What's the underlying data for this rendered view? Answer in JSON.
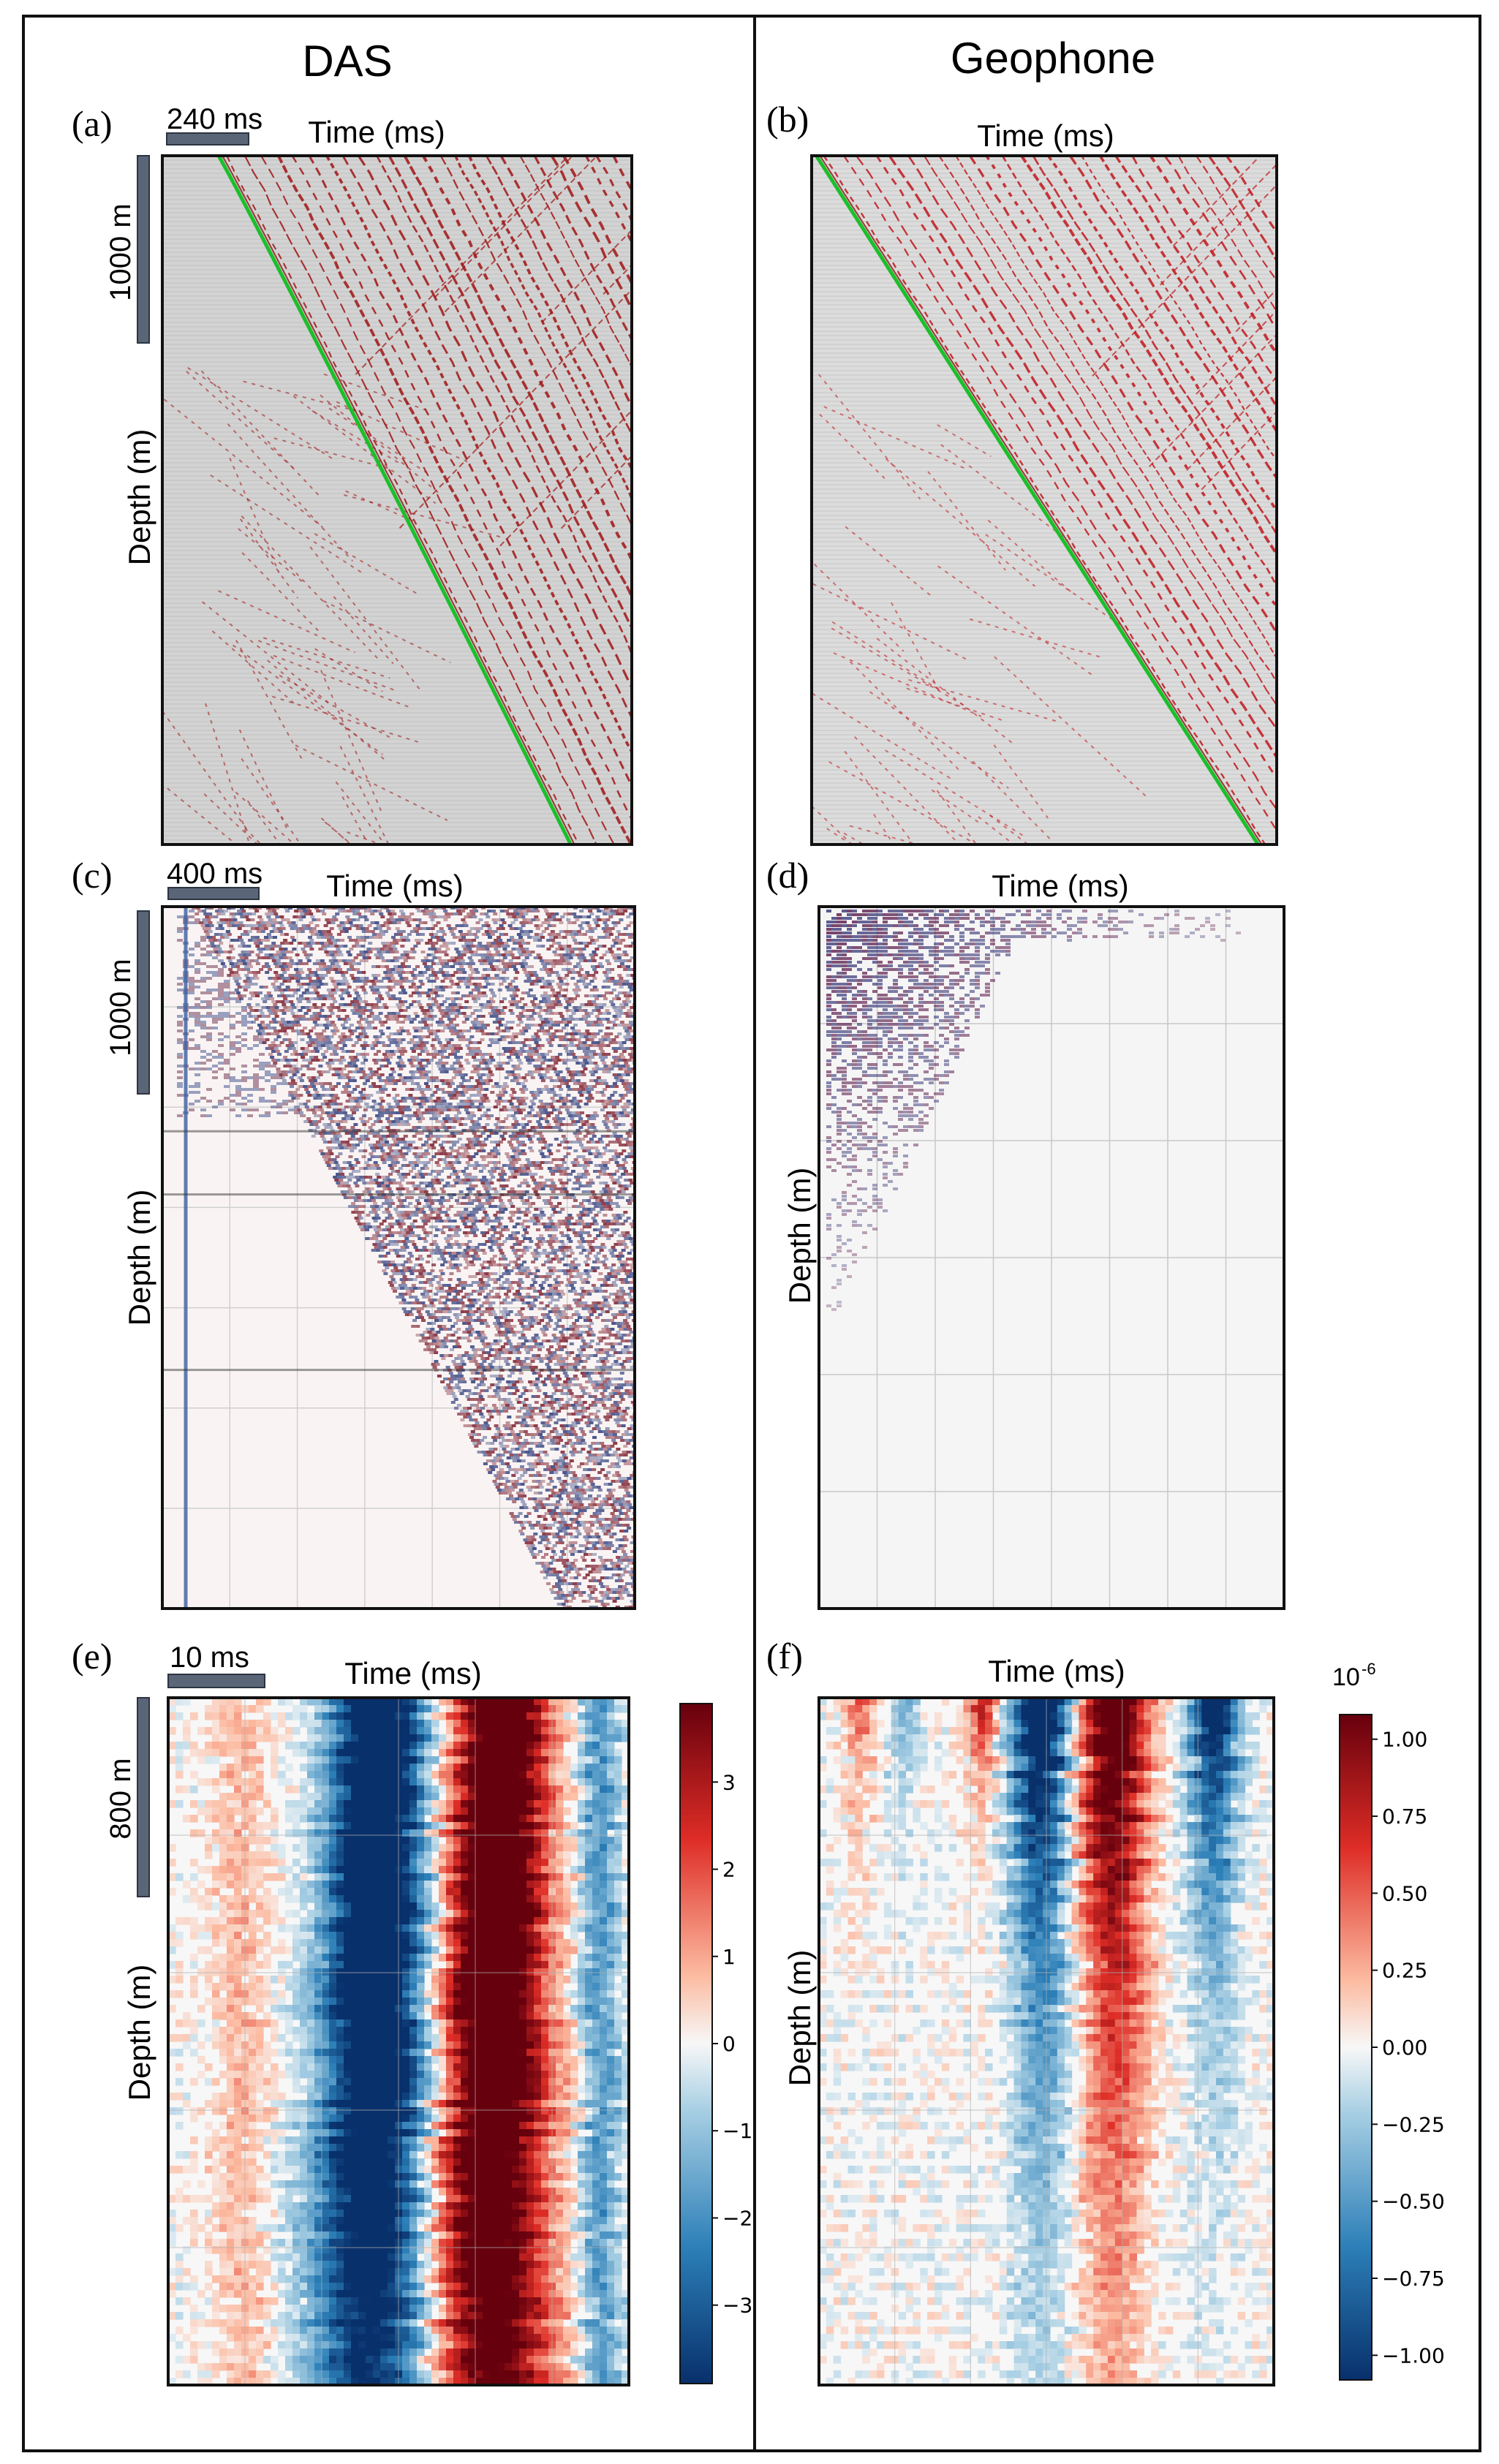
{
  "figure": {
    "columns": {
      "left": "DAS",
      "right": "Geophone"
    },
    "panels": [
      {
        "id": "a",
        "label": "(a)",
        "time_label": "Time (ms)",
        "depth_label": "Depth (m)",
        "time_scale": "240 ms",
        "depth_scale": "1000 m",
        "style": "wiggle-traveltime",
        "background": "#d3d3d3",
        "trace_color": "#a01414",
        "pick_color": "#1bbf2a"
      },
      {
        "id": "b",
        "label": "(b)",
        "time_label": "Time (ms)",
        "depth_label": "",
        "time_scale": "",
        "depth_scale": "",
        "style": "wiggle-traveltime",
        "background": "#dcdcdc",
        "trace_color": "#c0181c",
        "pick_color": "#1bbf2a"
      },
      {
        "id": "c",
        "label": "(c)",
        "time_label": "Time (ms)",
        "depth_label": "Depth (m)",
        "time_scale": "400 ms",
        "depth_scale": "1000 m",
        "style": "seismic-dense"
      },
      {
        "id": "d",
        "label": "(d)",
        "time_label": "Time (ms)",
        "depth_label": "Depth (m)",
        "time_scale": "",
        "depth_scale": "",
        "style": "seismic-sparse"
      },
      {
        "id": "e",
        "label": "(e)",
        "time_label": "Time (ms)",
        "depth_label": "Depth (m)",
        "time_scale": "10 ms",
        "depth_scale": "800 m",
        "style": "zoom-das"
      },
      {
        "id": "f",
        "label": "(f)",
        "time_label": "Time (ms)",
        "depth_label": "Depth (m)",
        "time_scale": "",
        "depth_scale": "",
        "style": "zoom-geophone"
      }
    ],
    "colorbars": [
      {
        "panel": "e",
        "title": "",
        "ticks": [
          "3",
          "2",
          "1",
          "0",
          "−1",
          "−2",
          "−3"
        ],
        "min": -3.9,
        "max": 3.9,
        "tick_values": [
          3,
          2,
          1,
          0,
          -1,
          -2,
          -3
        ]
      },
      {
        "panel": "f",
        "title": "10",
        "title_exp": "-6",
        "ticks": [
          "1.00",
          "0.75",
          "0.50",
          "0.25",
          "0.00",
          "−0.25",
          "−0.50",
          "−0.75",
          "−1.00"
        ],
        "min": -1.08,
        "max": 1.08,
        "tick_values": [
          1,
          0.75,
          0.5,
          0.25,
          0,
          -0.25,
          -0.5,
          -0.75,
          -1
        ]
      }
    ],
    "colormap": {
      "low": "#08306b",
      "mid": "#f7f7f7",
      "high": "#67000d"
    },
    "scalebar_color": "#5a6678"
  }
}
